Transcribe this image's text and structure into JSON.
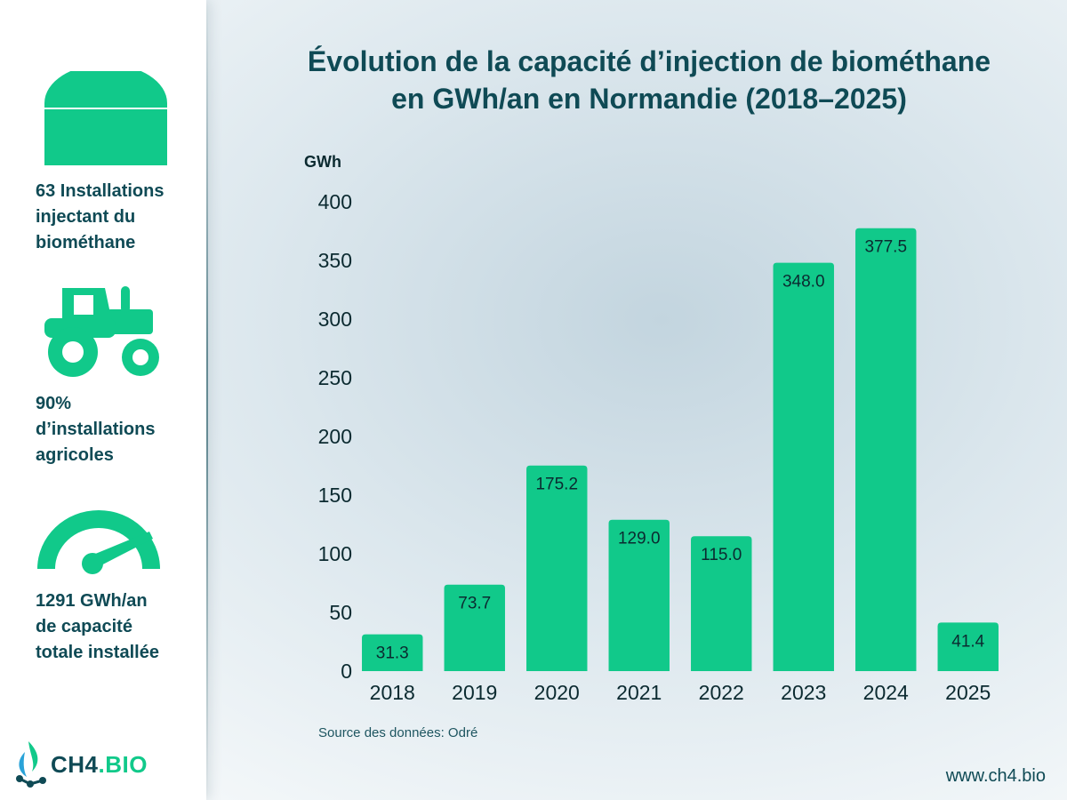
{
  "title_line1": "Évolution de la capacité d’injection de biométhane",
  "title_line2": "en GWh/an en Normandie (2018–2025)",
  "sidebar": {
    "stats": [
      {
        "icon": "biogas-dome-icon",
        "line1": "63 Installations",
        "line2": "injectant du",
        "line3": "biométhane"
      },
      {
        "icon": "tractor-icon",
        "line1": "90%",
        "line2": "d’installations",
        "line3": "agricoles"
      },
      {
        "icon": "gauge-icon",
        "line1": "1291 GWh/an",
        "line2": "de capacité",
        "line3": "totale installée"
      }
    ],
    "logo_main": "CH4",
    "logo_accent": ".BIO"
  },
  "source": "Source des données: Odré",
  "website": "www.ch4.bio",
  "colors": {
    "bar": "#11c98a",
    "title": "#0f4a55",
    "text": "#0b2a30"
  },
  "chart_data": {
    "type": "bar",
    "title": "Évolution de la capacité d’injection de biométhane en GWh/an en Normandie (2018–2025)",
    "ylabel": "GWh",
    "xlabel": "",
    "categories": [
      "2018",
      "2019",
      "2020",
      "2021",
      "2022",
      "2023",
      "2024",
      "2025"
    ],
    "values": [
      31.3,
      73.7,
      175.2,
      129.0,
      115.0,
      348.0,
      377.5,
      41.4
    ],
    "value_labels": [
      "31.3",
      "73.7",
      "175.2",
      "129.0",
      "115.0",
      "348.0",
      "377.5",
      "41.4"
    ],
    "yticks": [
      0,
      50,
      100,
      150,
      200,
      250,
      300,
      350,
      400
    ],
    "ylim": [
      0,
      400
    ],
    "grid": false,
    "legend": "none"
  }
}
